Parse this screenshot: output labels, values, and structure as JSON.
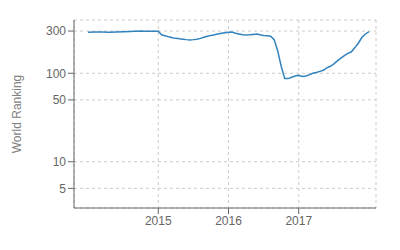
{
  "chart_data": {
    "type": "line",
    "ylabel": "World Ranking",
    "x": [
      2014.0,
      2014.1,
      2014.2,
      2014.3,
      2014.4,
      2014.5,
      2014.6,
      2014.65,
      2014.7,
      2014.75,
      2014.8,
      2014.9,
      2014.95,
      2015.0,
      2015.05,
      2015.1,
      2015.15,
      2015.2,
      2015.25,
      2015.3,
      2015.35,
      2015.4,
      2015.45,
      2015.5,
      2015.55,
      2015.6,
      2015.65,
      2015.7,
      2015.75,
      2015.8,
      2015.85,
      2015.9,
      2015.95,
      2016.0,
      2016.05,
      2016.1,
      2016.15,
      2016.2,
      2016.25,
      2016.3,
      2016.35,
      2016.4,
      2016.45,
      2016.5,
      2016.55,
      2016.6,
      2016.65,
      2016.7,
      2016.75,
      2016.8,
      2016.85,
      2016.9,
      2016.95,
      2017.0,
      2017.05,
      2017.1,
      2017.15,
      2017.2,
      2017.25,
      2017.3,
      2017.35,
      2017.4,
      2017.45,
      2017.5,
      2017.55,
      2017.6,
      2017.65,
      2017.7,
      2017.75,
      2017.8,
      2017.85,
      2017.9,
      2017.95,
      2018.0
    ],
    "values": [
      290,
      292,
      293,
      291,
      293,
      295,
      297,
      298,
      299,
      300,
      299,
      298,
      299,
      299,
      270,
      265,
      258,
      252,
      248,
      245,
      243,
      240,
      238,
      240,
      243,
      248,
      255,
      262,
      268,
      272,
      278,
      283,
      287,
      291,
      292,
      284,
      278,
      272,
      270,
      272,
      275,
      278,
      272,
      268,
      265,
      262,
      240,
      180,
      120,
      87,
      87,
      90,
      93,
      95,
      92,
      93,
      96,
      100,
      102,
      105,
      108,
      115,
      120,
      128,
      138,
      148,
      158,
      168,
      175,
      195,
      220,
      255,
      278,
      295
    ],
    "xlim": [
      2013.8,
      2018.1
    ],
    "xticks": [
      2015,
      2016,
      2017
    ],
    "ylim": [
      3,
      400
    ],
    "yticks": [
      5,
      10,
      50,
      100,
      300
    ],
    "log": "y",
    "grid": true
  }
}
